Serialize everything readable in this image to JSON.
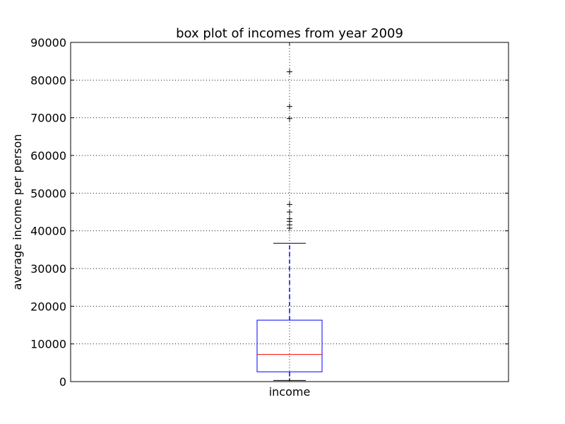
{
  "chart_data": {
    "type": "box",
    "title": "box plot of incomes from year 2009",
    "xlabel": "",
    "ylabel": "average income per person",
    "categories": [
      "income"
    ],
    "ylim": [
      0,
      90000
    ],
    "yticks": [
      0,
      10000,
      20000,
      30000,
      40000,
      50000,
      60000,
      70000,
      80000,
      90000
    ],
    "ytick_labels": [
      "0",
      "10000",
      "20000",
      "30000",
      "40000",
      "50000",
      "60000",
      "70000",
      "80000",
      "90000"
    ],
    "grid": true,
    "series": [
      {
        "whisker_low": 300,
        "q1": 2600,
        "median": 7200,
        "q3": 16300,
        "whisker_high": 36700,
        "outliers": [
          40700,
          41600,
          42500,
          43200,
          45000,
          47000,
          69800,
          73000,
          82200
        ]
      }
    ],
    "colors": {
      "box": "#0000ff",
      "median": "#ff0000",
      "whisker": "#0000ff",
      "cap": "#000000",
      "flier": "#000000",
      "grid": "#000000"
    }
  }
}
